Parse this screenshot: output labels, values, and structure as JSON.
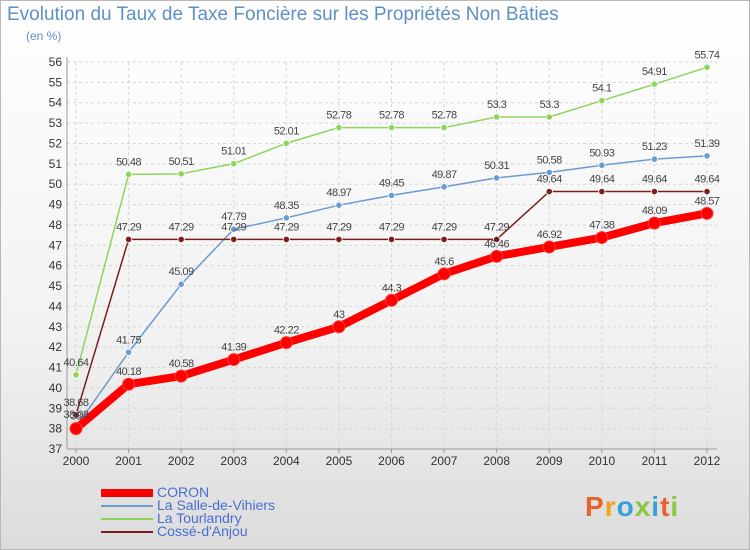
{
  "title": "Evolution du Taux de Taxe Foncière sur les Propriétés Non Bâties",
  "unit": "(en %)",
  "brand": {
    "letters": [
      {
        "ch": "P",
        "color": "#e8632a"
      },
      {
        "ch": "r",
        "color": "#f0a21c"
      },
      {
        "ch": "o",
        "color": "#3aa0d8"
      },
      {
        "ch": "x",
        "color": "#8dc63f"
      },
      {
        "ch": "i",
        "color": "#3aa0d8"
      },
      {
        "ch": "t",
        "color": "#e8632a"
      },
      {
        "ch": "i",
        "color": "#8dc63f"
      }
    ]
  },
  "chart_data": {
    "type": "line",
    "x": [
      "2000",
      "2001",
      "2002",
      "2003",
      "2004",
      "2005",
      "2006",
      "2007",
      "2008",
      "2009",
      "2010",
      "2011",
      "2012"
    ],
    "ylim": [
      37,
      56
    ],
    "yticks": [
      37,
      38,
      39,
      40,
      41,
      42,
      43,
      44,
      45,
      46,
      47,
      48,
      49,
      50,
      51,
      52,
      53,
      54,
      55,
      56
    ],
    "grid": true,
    "legend_position": "bottom-left",
    "series": [
      {
        "name": "CORON",
        "color": "#ff0000",
        "emphasis": true,
        "values": [
          38,
          40.18,
          40.58,
          41.39,
          42.22,
          43,
          44.3,
          45.6,
          46.46,
          46.92,
          47.38,
          48.09,
          48.57
        ],
        "labels": [
          "38",
          "40.18",
          "40.58",
          "41.39",
          "42.22",
          "43",
          "44.3",
          "45.6",
          "46.46",
          "46.92",
          "47.38",
          "48.09",
          "48.57"
        ]
      },
      {
        "name": "La Salle-de-Vihiers",
        "color": "#6a9bd1",
        "values": [
          38.08,
          41.75,
          45.09,
          47.79,
          48.35,
          48.97,
          49.45,
          49.87,
          50.31,
          50.58,
          50.93,
          51.23,
          51.39
        ],
        "labels": [
          "38.08",
          "41.75",
          "45.09",
          "47.79",
          "48.35",
          "48.97",
          "49.45",
          "49.87",
          "50.31",
          "50.58",
          "50.93",
          "51.23",
          "51.39"
        ]
      },
      {
        "name": "La Tourlandry",
        "color": "#8fd45a",
        "values": [
          40.64,
          50.48,
          50.51,
          51.01,
          52.01,
          52.78,
          52.78,
          52.78,
          53.3,
          53.3,
          54.1,
          54.91,
          55.74
        ],
        "labels": [
          "40.64",
          "50.48",
          "50.51",
          "51.01",
          "52.01",
          "52.78",
          "52.78",
          "52.78",
          "53.3",
          "53.3",
          "54.1",
          "54.91",
          "55.74"
        ]
      },
      {
        "name": "Cossé-d'Anjou",
        "color": "#7a1f1f",
        "values": [
          38.68,
          47.29,
          47.29,
          47.29,
          47.29,
          47.29,
          47.29,
          47.29,
          47.29,
          49.64,
          49.64,
          49.64,
          49.64
        ],
        "labels": [
          "38.68",
          "47.29",
          "47.29",
          "47.29",
          "47.29",
          "47.29",
          "47.29",
          "47.29",
          "47.29",
          "49.64",
          "49.64",
          "49.64",
          "49.64"
        ]
      }
    ]
  }
}
